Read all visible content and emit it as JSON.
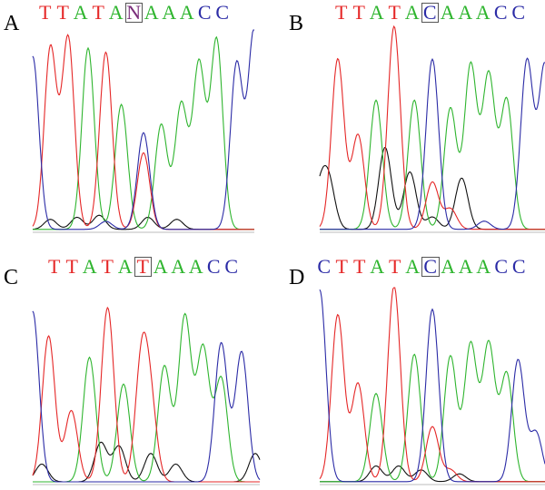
{
  "colors": {
    "A": "#2fb52f",
    "C": "#2b2ba6",
    "G": "#111111",
    "T": "#e52727",
    "N": "#7a2d7a"
  },
  "panels": [
    {
      "label": "A",
      "sequence": [
        "T",
        "T",
        "A",
        "T",
        "A",
        "N",
        "A",
        "A",
        "A",
        "C",
        "C"
      ],
      "highlight_index": 5,
      "traces": {
        "T": [
          [
            0.08,
            0.9
          ],
          [
            0.16,
            0.95
          ],
          [
            0.33,
            0.88
          ],
          [
            0.5,
            0.38
          ]
        ],
        "A": [
          [
            0.25,
            0.9
          ],
          [
            0.4,
            0.62
          ],
          [
            0.58,
            0.52
          ],
          [
            0.67,
            0.62
          ],
          [
            0.75,
            0.82
          ],
          [
            0.83,
            0.94
          ]
        ],
        "C": [
          [
            0.0,
            0.86
          ],
          [
            0.33,
            0.04
          ],
          [
            0.5,
            0.48
          ],
          [
            0.92,
            0.82
          ],
          [
            1.0,
            0.99
          ]
        ],
        "G": [
          [
            0.08,
            0.05
          ],
          [
            0.2,
            0.06
          ],
          [
            0.3,
            0.07
          ],
          [
            0.52,
            0.06
          ],
          [
            0.65,
            0.05
          ]
        ]
      }
    },
    {
      "label": "B",
      "sequence": [
        "T",
        "T",
        "A",
        "T",
        "A",
        "C",
        "A",
        "A",
        "A",
        "C",
        "C"
      ],
      "highlight_index": 5,
      "traces": {
        "T": [
          [
            0.08,
            0.83
          ],
          [
            0.17,
            0.46
          ],
          [
            0.33,
            0.99
          ],
          [
            0.5,
            0.23
          ],
          [
            0.58,
            0.1
          ]
        ],
        "A": [
          [
            0.25,
            0.63
          ],
          [
            0.42,
            0.63
          ],
          [
            0.58,
            0.59
          ],
          [
            0.67,
            0.8
          ],
          [
            0.75,
            0.75
          ],
          [
            0.83,
            0.63
          ]
        ],
        "C": [
          [
            0.5,
            0.83
          ],
          [
            0.92,
            0.82
          ],
          [
            1.0,
            0.8
          ],
          [
            0.73,
            0.04
          ]
        ],
        "G": [
          [
            0.04,
            0.22
          ],
          [
            0.29,
            0.4
          ],
          [
            0.4,
            0.28
          ],
          [
            0.5,
            0.06
          ],
          [
            0.63,
            0.25
          ],
          [
            0.0,
            0.18
          ]
        ]
      }
    },
    {
      "label": "C",
      "sequence": [
        "T",
        "T",
        "A",
        "T",
        "A",
        "T",
        "A",
        "A",
        "A",
        "C",
        "C"
      ],
      "highlight_index": 5,
      "traces": {
        "T": [
          [
            0.07,
            0.82
          ],
          [
            0.17,
            0.4
          ],
          [
            0.33,
            0.98
          ],
          [
            0.48,
            0.67
          ],
          [
            0.52,
            0.38
          ]
        ],
        "A": [
          [
            0.25,
            0.7
          ],
          [
            0.4,
            0.55
          ],
          [
            0.58,
            0.65
          ],
          [
            0.67,
            0.93
          ],
          [
            0.75,
            0.75
          ],
          [
            0.83,
            0.58
          ]
        ],
        "C": [
          [
            0.0,
            0.92
          ],
          [
            0.83,
            0.78
          ],
          [
            0.92,
            0.73
          ],
          [
            0.0,
            0.04
          ]
        ],
        "G": [
          [
            0.04,
            0.1
          ],
          [
            0.3,
            0.22
          ],
          [
            0.38,
            0.2
          ],
          [
            0.52,
            0.16
          ],
          [
            0.63,
            0.1
          ],
          [
            0.98,
            0.16
          ]
        ]
      }
    },
    {
      "label": "D",
      "sequence": [
        "C",
        "T",
        "T",
        "A",
        "T",
        "A",
        "C",
        "A",
        "A",
        "A",
        "C",
        "C"
      ],
      "highlight_index": 6,
      "traces": {
        "T": [
          [
            0.08,
            0.85
          ],
          [
            0.17,
            0.5
          ],
          [
            0.33,
            1.0
          ],
          [
            0.5,
            0.28
          ],
          [
            0.58,
            0.06
          ]
        ],
        "A": [
          [
            0.25,
            0.45
          ],
          [
            0.42,
            0.65
          ],
          [
            0.58,
            0.64
          ],
          [
            0.67,
            0.7
          ],
          [
            0.75,
            0.7
          ],
          [
            0.83,
            0.55
          ]
        ],
        "C": [
          [
            0.0,
            0.92
          ],
          [
            0.5,
            0.88
          ],
          [
            0.88,
            0.62
          ],
          [
            0.96,
            0.25
          ],
          [
            0.0,
            0.06
          ]
        ],
        "G": [
          [
            0.25,
            0.08
          ],
          [
            0.35,
            0.08
          ],
          [
            0.45,
            0.06
          ],
          [
            0.62,
            0.04
          ]
        ]
      }
    }
  ]
}
